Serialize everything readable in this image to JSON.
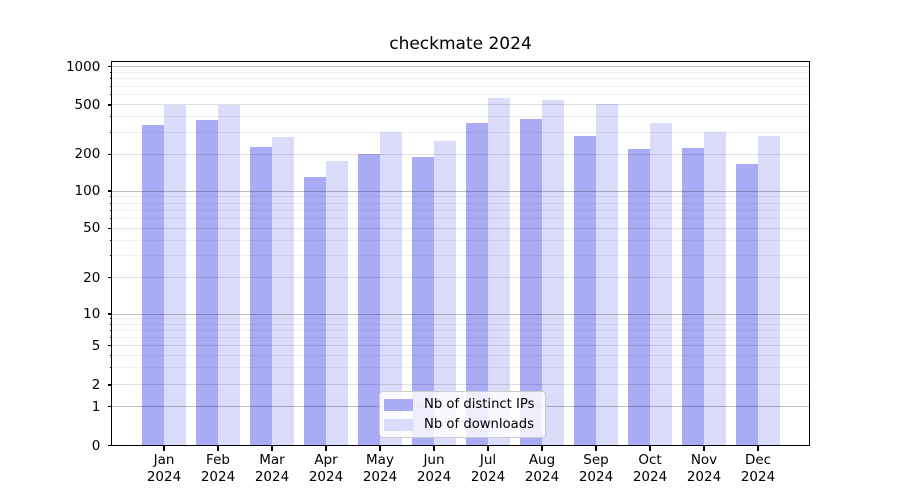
{
  "title": "checkmate 2024",
  "legend": {
    "items": [
      {
        "label": "Nb of distinct IPs",
        "color": "#aaabf5"
      },
      {
        "label": "Nb of downloads",
        "color": "#dadcf9"
      }
    ]
  },
  "y_axis": {
    "tick_labels": [
      "0",
      "1",
      "2",
      "5",
      "10",
      "20",
      "50",
      "100",
      "200",
      "500",
      "1000"
    ]
  },
  "x_axis": {
    "months": [
      "Jan",
      "Feb",
      "Mar",
      "Apr",
      "May",
      "Jun",
      "Jul",
      "Aug",
      "Sep",
      "Oct",
      "Nov",
      "Dec"
    ],
    "year": "2024"
  },
  "chart_data": {
    "type": "bar",
    "title": "checkmate 2024",
    "categories": [
      "Jan 2024",
      "Feb 2024",
      "Mar 2024",
      "Apr 2024",
      "May 2024",
      "Jun 2024",
      "Jul 2024",
      "Aug 2024",
      "Sep 2024",
      "Oct 2024",
      "Nov 2024",
      "Dec 2024"
    ],
    "series": [
      {
        "name": "Nb of distinct IPs",
        "color": "#aaabf5",
        "values": [
          345,
          377,
          228,
          130,
          200,
          191,
          357,
          383,
          283,
          220,
          225,
          167
        ]
      },
      {
        "name": "Nb of downloads",
        "color": "#dadcf9",
        "values": [
          500,
          500,
          278,
          176,
          304,
          257,
          566,
          541,
          503,
          359,
          301,
          283
        ]
      }
    ],
    "xlabel": "",
    "ylabel": "",
    "y_scale": "symlog",
    "ylim": [
      0,
      1000
    ],
    "y_ticks": [
      0,
      1,
      2,
      5,
      10,
      20,
      50,
      100,
      200,
      500,
      1000
    ],
    "grid": "horizontal, major + minor",
    "legend_position": "lower center"
  }
}
